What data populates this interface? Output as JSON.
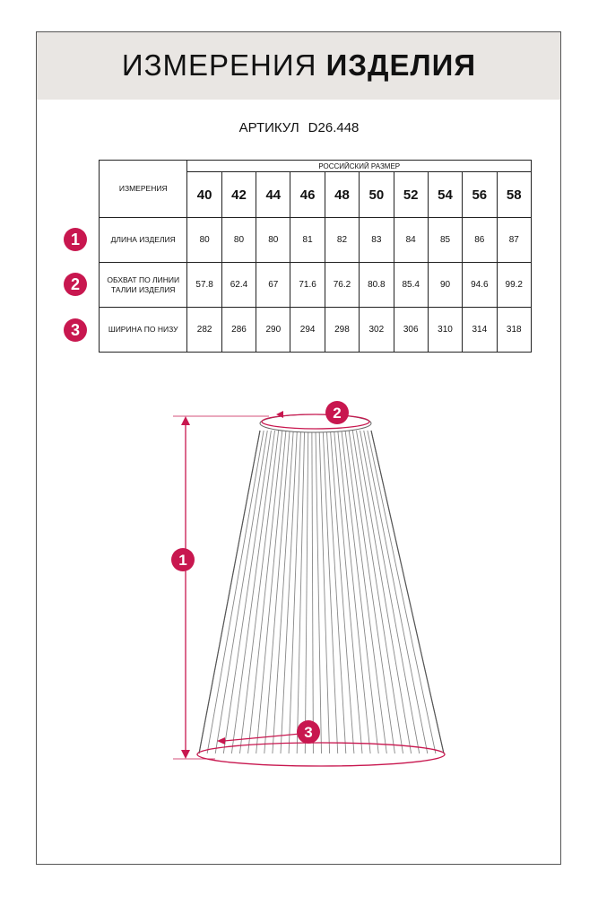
{
  "header": {
    "title_light": "ИЗМЕРЕНИЯ",
    "title_bold": "ИЗДЕЛИЯ"
  },
  "article": {
    "label": "АРТИКУЛ",
    "value": "D26.448"
  },
  "table": {
    "measure_header": "ИЗМЕРЕНИЯ",
    "size_header": "РОССИЙСКИЙ РАЗМЕР",
    "sizes": [
      "40",
      "42",
      "44",
      "46",
      "48",
      "50",
      "52",
      "54",
      "56",
      "58"
    ],
    "rows": [
      {
        "num": "1",
        "label": "ДЛИНА ИЗДЕЛИЯ",
        "values": [
          "80",
          "80",
          "80",
          "81",
          "82",
          "83",
          "84",
          "85",
          "86",
          "87"
        ]
      },
      {
        "num": "2",
        "label": "ОБХВАТ ПО ЛИНИИ ТАЛИИ ИЗДЕЛИЯ",
        "values": [
          "57.8",
          "62.4",
          "67",
          "71.6",
          "76.2",
          "80.8",
          "85.4",
          "90",
          "94.6",
          "99.2"
        ]
      },
      {
        "num": "3",
        "label": "ШИРИНА ПО НИЗУ",
        "values": [
          "282",
          "286",
          "290",
          "294",
          "298",
          "302",
          "306",
          "310",
          "314",
          "318"
        ]
      }
    ]
  },
  "diagram": {
    "markers": [
      "1",
      "2",
      "3"
    ]
  },
  "colors": {
    "accent": "#c8174f",
    "band": "#e9e6e3"
  }
}
